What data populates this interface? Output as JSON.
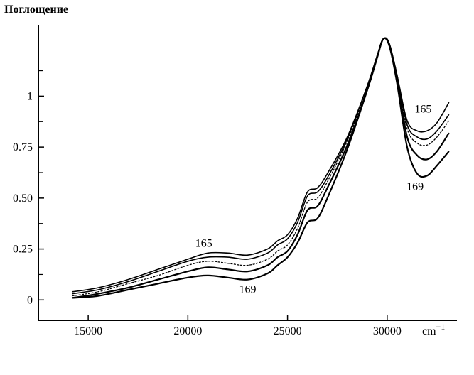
{
  "chart_data": {
    "type": "line",
    "title": "",
    "ylabel": "Поглощение",
    "xlabel": "cm",
    "xlabel_exponent": "−1",
    "xlim": [
      12500,
      33500
    ],
    "ylim": [
      -0.1,
      1.35
    ],
    "x_ticks": [
      15000,
      20000,
      25000,
      30000
    ],
    "x_tick_labels": [
      "15000",
      "20000",
      "25000",
      "30000"
    ],
    "y_ticks": [
      0,
      0.25,
      0.5,
      0.75,
      1
    ],
    "y_tick_labels": [
      "0",
      "0.25",
      "0.50",
      "0.75",
      "1"
    ],
    "y_minor_ticks": [
      0.125,
      0.375,
      0.625,
      0.875,
      1.125
    ],
    "grid": false,
    "legend": "none",
    "annotations": [
      {
        "text": "165",
        "x": 20800,
        "y": 0.26
      },
      {
        "text": "169",
        "x": 23000,
        "y": 0.035
      },
      {
        "text": "165",
        "x": 31800,
        "y": 0.92
      },
      {
        "text": "169",
        "x": 31400,
        "y": 0.54
      }
    ],
    "series": [
      {
        "x": [
          14200,
          15500,
          17000,
          18500,
          20000,
          21000,
          22000,
          23000,
          24000,
          24500,
          25000,
          25500,
          26000,
          26500,
          27000,
          28000,
          29000,
          29500,
          29800,
          30100,
          30500,
          31000,
          31500,
          32000,
          32500,
          33100
        ],
        "y": [
          0.04,
          0.06,
          0.1,
          0.15,
          0.2,
          0.23,
          0.23,
          0.22,
          0.25,
          0.29,
          0.32,
          0.4,
          0.53,
          0.55,
          0.62,
          0.8,
          1.05,
          1.2,
          1.28,
          1.26,
          1.1,
          0.88,
          0.83,
          0.83,
          0.87,
          0.97
        ]
      },
      {
        "x": [
          14200,
          15500,
          17000,
          18500,
          20000,
          21000,
          22000,
          23000,
          24000,
          24500,
          25000,
          25500,
          26000,
          26500,
          27000,
          28000,
          29000,
          29500,
          29800,
          30100,
          30500,
          31000,
          31500,
          32000,
          32500,
          33100
        ],
        "y": [
          0.03,
          0.05,
          0.09,
          0.14,
          0.19,
          0.21,
          0.21,
          0.2,
          0.23,
          0.27,
          0.3,
          0.38,
          0.51,
          0.53,
          0.6,
          0.79,
          1.05,
          1.2,
          1.28,
          1.26,
          1.1,
          0.86,
          0.8,
          0.79,
          0.83,
          0.91
        ]
      },
      {
        "x": [
          14200,
          15500,
          17000,
          18500,
          20000,
          21000,
          22000,
          23000,
          24000,
          24500,
          25000,
          25500,
          26000,
          26500,
          27000,
          28000,
          29000,
          29500,
          29800,
          30100,
          30500,
          31000,
          31500,
          32000,
          32500,
          33100
        ],
        "y": [
          0.02,
          0.04,
          0.08,
          0.12,
          0.17,
          0.19,
          0.18,
          0.17,
          0.2,
          0.24,
          0.27,
          0.35,
          0.48,
          0.5,
          0.58,
          0.78,
          1.04,
          1.2,
          1.28,
          1.26,
          1.09,
          0.84,
          0.77,
          0.76,
          0.8,
          0.88
        ]
      },
      {
        "x": [
          14200,
          15500,
          17000,
          18500,
          20000,
          21000,
          22000,
          23000,
          24000,
          24500,
          25000,
          25500,
          26000,
          26500,
          27000,
          28000,
          29000,
          29500,
          29800,
          30100,
          30500,
          31000,
          31500,
          32000,
          32500,
          33100
        ],
        "y": [
          0.01,
          0.03,
          0.06,
          0.1,
          0.14,
          0.16,
          0.15,
          0.14,
          0.17,
          0.21,
          0.24,
          0.32,
          0.44,
          0.46,
          0.55,
          0.76,
          1.03,
          1.19,
          1.28,
          1.25,
          1.08,
          0.8,
          0.71,
          0.69,
          0.73,
          0.82
        ]
      },
      {
        "x": [
          14200,
          15500,
          17000,
          18500,
          20000,
          21000,
          22000,
          23000,
          24000,
          24500,
          25000,
          25500,
          26000,
          26500,
          27000,
          28000,
          29000,
          29500,
          29800,
          30100,
          30500,
          31000,
          31500,
          32000,
          32500,
          33100
        ],
        "y": [
          0.01,
          0.02,
          0.05,
          0.08,
          0.11,
          0.12,
          0.11,
          0.1,
          0.13,
          0.17,
          0.21,
          0.28,
          0.38,
          0.4,
          0.5,
          0.74,
          1.03,
          1.19,
          1.28,
          1.25,
          1.06,
          0.75,
          0.62,
          0.61,
          0.66,
          0.73
        ]
      }
    ]
  }
}
